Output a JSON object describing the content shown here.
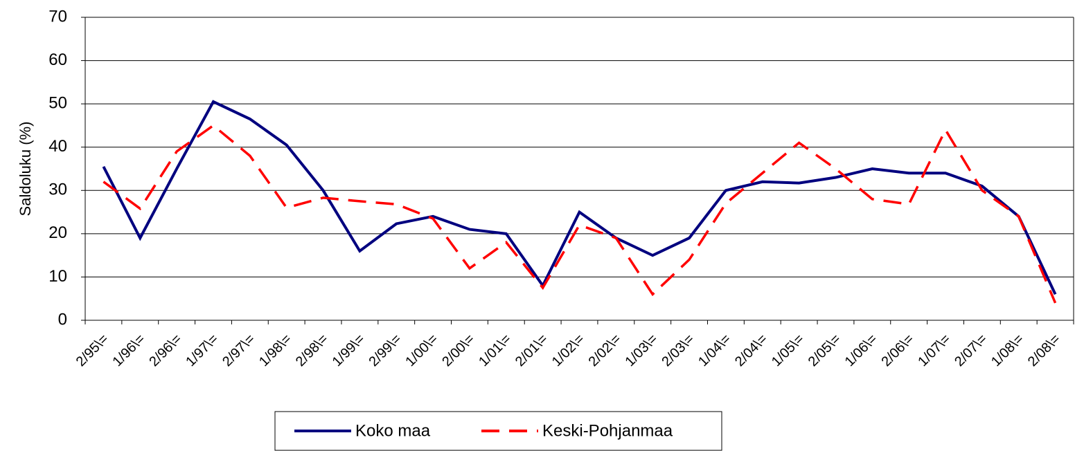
{
  "chart_data": {
    "type": "line",
    "y_label": "Saldoluku (%)",
    "categories": [
      "2/95\\=",
      "1/96\\=",
      "2/96\\=",
      "1/97\\=",
      "2/97\\=",
      "1/98\\=",
      "2/98\\=",
      "1/99\\=",
      "2/99\\=",
      "1/00\\=",
      "2/00\\=",
      "1/01\\=",
      "2/01\\=",
      "1/02\\=",
      "2/02\\=",
      "1/03\\=",
      "2/03\\=",
      "1/04\\=",
      "2/04\\=",
      "1/05\\=",
      "2/05\\=",
      "1/06\\=",
      "2/06\\=",
      "1/07\\=",
      "2/07\\=",
      "1/08\\=",
      "2/08\\="
    ],
    "series": [
      {
        "name": "Koko maa",
        "color": "#00007f",
        "dash": false,
        "values": [
          35.5,
          19,
          35,
          50.5,
          46.5,
          40.5,
          30,
          16,
          22.3,
          24,
          21,
          20,
          8,
          25,
          19,
          15,
          19,
          30,
          32,
          31.7,
          33,
          35,
          34,
          34,
          31,
          24,
          6
        ]
      },
      {
        "name": "Keski-Pohjanmaa",
        "color": "#ff0000",
        "dash": true,
        "values": [
          32,
          25.8,
          39,
          45,
          38,
          26,
          28.3,
          27.5,
          26.8,
          23.5,
          12,
          18,
          7.5,
          22,
          19,
          6,
          14,
          27,
          34,
          41,
          35,
          28,
          26.8,
          44,
          30,
          24,
          4
        ]
      }
    ],
    "ylim": [
      0,
      70
    ],
    "yticks": [
      0,
      10,
      20,
      30,
      40,
      50,
      60,
      70
    ],
    "grid": true
  }
}
